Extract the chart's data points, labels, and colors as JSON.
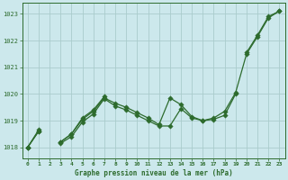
{
  "title": "Graphe pression niveau de la mer (hPa)",
  "bg_color": "#cce8ec",
  "grid_color": "#aacccc",
  "line_color": "#2d6b2d",
  "xlim": [
    -0.5,
    23.5
  ],
  "ylim": [
    1017.6,
    1023.4
  ],
  "yticks": [
    1018,
    1019,
    1020,
    1021,
    1022,
    1023
  ],
  "xticks": [
    0,
    1,
    2,
    3,
    4,
    5,
    6,
    7,
    8,
    9,
    10,
    11,
    12,
    13,
    14,
    15,
    16,
    17,
    18,
    19,
    20,
    21,
    22,
    23
  ],
  "line_upper": [
    1018.0,
    1018.6,
    null,
    1018.2,
    null,
    null,
    null,
    null,
    null,
    null,
    null,
    null,
    null,
    null,
    null,
    null,
    null,
    null,
    null,
    null,
    1021.5,
    1022.2,
    1022.85,
    1023.05
  ],
  "line_middle": [
    1018.0,
    1018.6,
    null,
    1018.2,
    1018.5,
    1019.05,
    1019.35,
    1019.85,
    1019.65,
    1019.5,
    1019.3,
    1019.1,
    1018.85,
    1019.85,
    1019.6,
    1019.15,
    1019.0,
    1019.1,
    1019.35,
    1020.05,
    1021.5,
    1022.15,
    1022.85,
    1023.1
  ],
  "line_lower": [
    1018.0,
    1018.6,
    null,
    1018.15,
    1018.4,
    1018.95,
    1019.25,
    1019.82,
    1019.55,
    1019.4,
    1019.2,
    1019.0,
    1018.8,
    1018.8,
    1019.45,
    1019.1,
    1019.0,
    1019.05,
    1019.2,
    1020.0,
    null,
    null,
    null,
    null
  ],
  "line_topsmooth": [
    1018.0,
    1018.65,
    null,
    1018.2,
    1018.5,
    1019.1,
    1019.4,
    1019.9,
    null,
    null,
    null,
    null,
    null,
    null,
    null,
    null,
    null,
    null,
    null,
    null,
    1021.55,
    1022.2,
    1022.9,
    1023.1
  ]
}
